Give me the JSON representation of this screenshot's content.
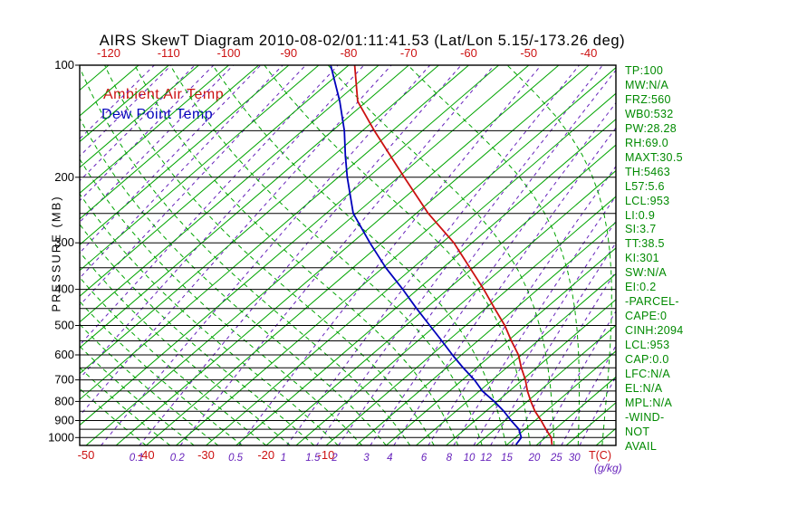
{
  "title": "AIRS SkewT Diagram 2010-08-02/01:11:41.53 (Lat/Lon 5.15/-173.26 deg)",
  "legend": {
    "ambient": "Ambient Air Temp",
    "dewpoint": "Dew Point Temp"
  },
  "axes": {
    "pressure_label": "PRESSURE (MB)",
    "temp_unit_label": "T(C)",
    "mixing_unit_label": "(g/kg)"
  },
  "side_panel": {
    "lines": [
      "TP:100",
      "MW:N/A",
      "FRZ:560",
      "WB0:532",
      "PW:28.28",
      "RH:69.0",
      "MAXT:30.5",
      "TH:5463",
      "L57:5.6",
      "LCL:953",
      "LI:0.9",
      "SI:3.7",
      "TT:38.5",
      "KI:301",
      "SW:N/A",
      "EI:0.2",
      "-PARCEL-",
      "CAPE:0",
      "CINH:2094",
      "LCL:953",
      "CAP:0.0",
      "LFC:N/A",
      "EL:N/A",
      "MPL:N/A",
      "-WIND-",
      "NOT",
      "AVAIL"
    ]
  },
  "colors": {
    "green": "#00a400",
    "red": "#cc1111",
    "blue": "#0000bb",
    "purple": "#6622bb",
    "black": "#000000"
  },
  "chart_data": {
    "type": "line",
    "title": "AIRS SkewT Diagram 2010-08-02/01:11:41.53 (Lat/Lon 5.15/-173.26 deg)",
    "ylabel": "PRESSURE (MB)",
    "xlabel": "T(C)",
    "y_scale": "log-pressure",
    "pressure_range": [
      100,
      1050
    ],
    "pressure_ticks": [
      100,
      200,
      300,
      400,
      500,
      600,
      700,
      800,
      900,
      1000
    ],
    "pressure_lines": [
      100,
      150,
      200,
      250,
      300,
      350,
      400,
      450,
      500,
      550,
      600,
      650,
      700,
      750,
      800,
      850,
      900,
      950,
      1000
    ],
    "top_temp_labels": [
      -120,
      -110,
      -100,
      -90,
      -80,
      -70,
      -60,
      -50,
      -40
    ],
    "bottom_temp_labels": [
      -50,
      -40,
      -30,
      -20,
      -10
    ],
    "mixing_ratio_labels": [
      0.1,
      0.2,
      0.5,
      1,
      1.5,
      2,
      3,
      4,
      6,
      8,
      10,
      12,
      15,
      20,
      25,
      30
    ],
    "mixing_ratio_unlabeled": [
      1e-05,
      2e-05,
      5e-05,
      0.0001,
      0.0002,
      0.0005,
      0.001,
      0.002,
      0.005,
      0.01,
      0.02,
      0.05
    ],
    "isotherms": {
      "min": -125,
      "max": 35,
      "step": 5
    },
    "moist_adiabats": {
      "min": -40,
      "max": 40,
      "step": 4
    },
    "series": [
      {
        "id": "ambient-air-temp",
        "name": "Ambient Air Temp",
        "color": "#cc1111",
        "units": [
          "mb",
          "C"
        ],
        "points": [
          [
            1045,
            27.5
          ],
          [
            1000,
            26
          ],
          [
            950,
            23.5
          ],
          [
            900,
            21
          ],
          [
            850,
            18.2
          ],
          [
            800,
            15.6
          ],
          [
            750,
            13
          ],
          [
            700,
            10.5
          ],
          [
            650,
            7.5
          ],
          [
            600,
            4.5
          ],
          [
            550,
            0.6
          ],
          [
            500,
            -3.5
          ],
          [
            450,
            -8.5
          ],
          [
            400,
            -14
          ],
          [
            350,
            -20.5
          ],
          [
            300,
            -28
          ],
          [
            250,
            -38
          ],
          [
            200,
            -49
          ],
          [
            175,
            -55.5
          ],
          [
            150,
            -63
          ],
          [
            125,
            -71.5
          ],
          [
            100,
            -79
          ]
        ]
      },
      {
        "id": "dew-point-temp",
        "name": "Dew Point Temp",
        "color": "#0000bb",
        "units": [
          "mb",
          "C"
        ],
        "points": [
          [
            1045,
            21.5
          ],
          [
            1000,
            21
          ],
          [
            950,
            19
          ],
          [
            900,
            16
          ],
          [
            850,
            13
          ],
          [
            800,
            9.5
          ],
          [
            750,
            5.5
          ],
          [
            700,
            2
          ],
          [
            650,
            -2.2
          ],
          [
            600,
            -6.5
          ],
          [
            550,
            -11
          ],
          [
            500,
            -16
          ],
          [
            450,
            -21.5
          ],
          [
            400,
            -27.5
          ],
          [
            350,
            -34.5
          ],
          [
            300,
            -42
          ],
          [
            250,
            -50.5
          ],
          [
            200,
            -58.5
          ],
          [
            175,
            -63
          ],
          [
            150,
            -68
          ],
          [
            125,
            -74.5
          ],
          [
            100,
            -83
          ]
        ]
      }
    ]
  }
}
